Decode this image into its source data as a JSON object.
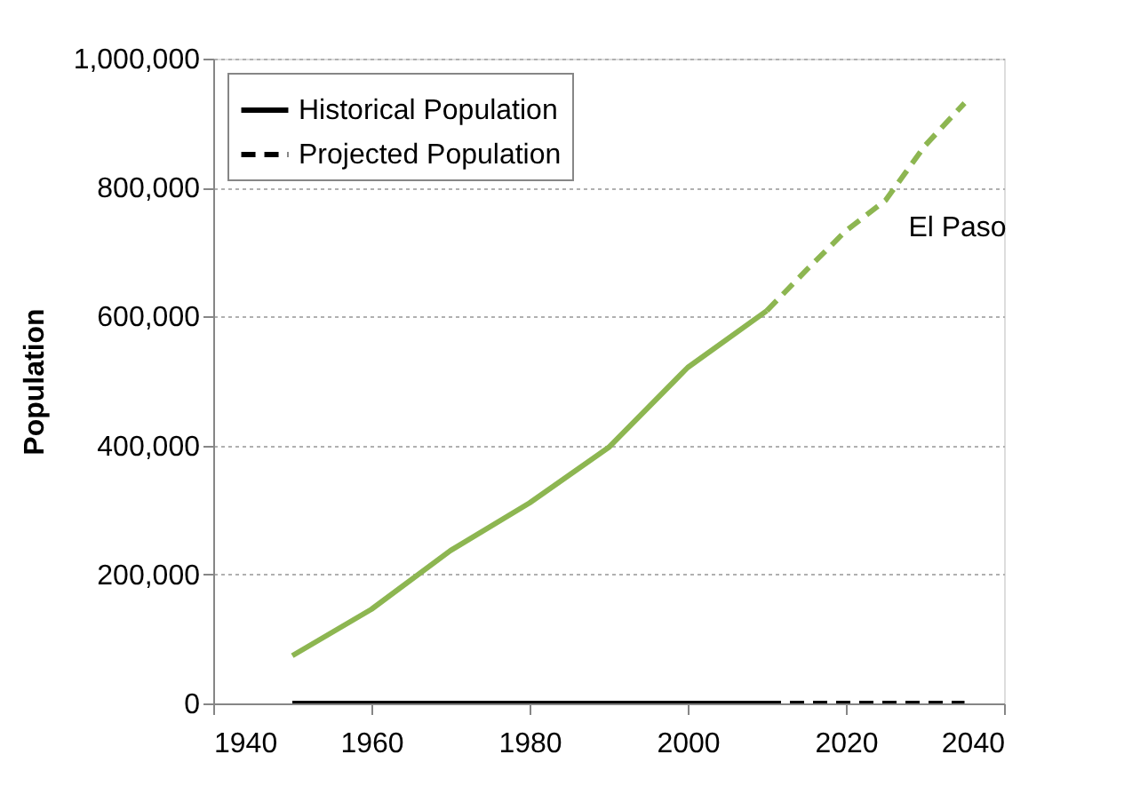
{
  "chart_data": {
    "type": "line",
    "ylabel": "Population",
    "xlim": [
      1940,
      2040
    ],
    "xticks": [
      1940,
      1960,
      1980,
      2000,
      2020,
      2040
    ],
    "ylim": [
      0,
      1000000
    ],
    "yticks": [
      {
        "value": 0,
        "label": "0"
      },
      {
        "value": 200000,
        "label": "200,000"
      },
      {
        "value": 400000,
        "label": "400,000"
      },
      {
        "value": 600000,
        "label": "600,000"
      },
      {
        "value": 800000,
        "label": "800,000"
      },
      {
        "value": 1000000,
        "label": "1,000,000"
      }
    ],
    "grid": "y",
    "legend": "top left",
    "annotations": [
      "El Paso"
    ],
    "series": [
      {
        "name": "Historical Population",
        "color": "#000000",
        "line_style": "solid",
        "x": [
          1950,
          2010
        ],
        "values": [
          0,
          0
        ]
      },
      {
        "name": "Projected Population",
        "color": "#000000",
        "line_style": "dashed",
        "x": [
          2010,
          2035
        ],
        "values": [
          0,
          0
        ]
      },
      {
        "color": "#8db651",
        "line_style": "solid",
        "x": [
          1950,
          1960,
          1970,
          1980,
          1990,
          2000,
          2010
        ],
        "values": [
          74000,
          146000,
          237000,
          311000,
          397000,
          521000,
          609000
        ]
      },
      {
        "color": "#8db651",
        "line_style": "dashed",
        "x": [
          2010,
          2015,
          2020,
          2025,
          2030,
          2035
        ],
        "values": [
          609000,
          672000,
          733000,
          780000,
          865000,
          931000
        ]
      }
    ]
  }
}
